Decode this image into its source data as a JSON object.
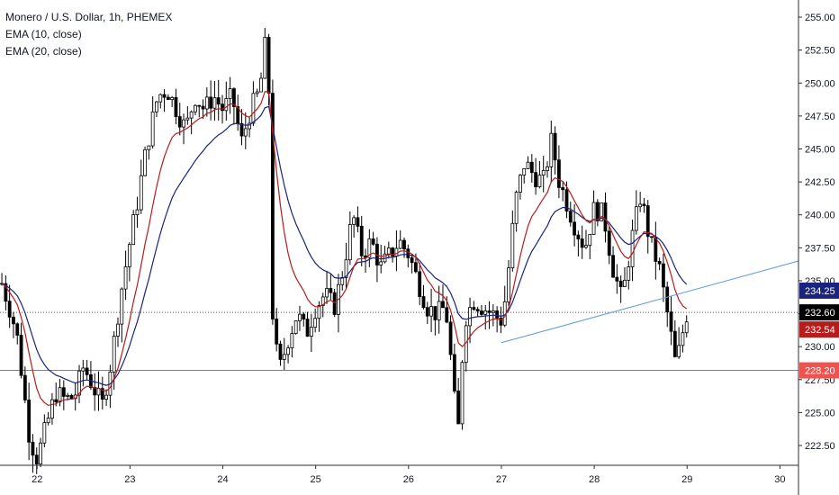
{
  "legend": {
    "title": "Monero / U.S. Dollar, 1h, PHEMEX",
    "ema10": "EMA (10, close)",
    "ema20": "EMA (20, close)"
  },
  "colors": {
    "up": "#ffffff",
    "down": "#000000",
    "wick": "#000000",
    "ema10": "#b71c1c",
    "ema20": "#1a237e",
    "trendline": "#5b9bd5",
    "support_line": "#ef5350",
    "grid": "#d9d9d9"
  },
  "chart_data": {
    "type": "candlestick",
    "symbol": "Monero / U.S. Dollar",
    "interval": "1h",
    "exchange": "PHEMEX",
    "x_ticks": [
      "22",
      "23",
      "24",
      "25",
      "26",
      "27",
      "28",
      "29",
      "30"
    ],
    "y_ticks": [
      "222.50",
      "225.00",
      "227.50",
      "230.00",
      "232.50",
      "235.00",
      "237.50",
      "240.00",
      "242.50",
      "245.00",
      "247.50",
      "250.00",
      "252.50",
      "255.00"
    ],
    "ylim": [
      221.0,
      256.3
    ],
    "xlim": [
      21.6,
      30.2
    ],
    "price_path": [
      [
        21.62,
        234.8
      ],
      [
        21.7,
        233.0
      ],
      [
        21.78,
        231.0
      ],
      [
        21.85,
        227.0
      ],
      [
        21.92,
        223.0
      ],
      [
        22.0,
        221.5
      ],
      [
        22.1,
        224.0
      ],
      [
        22.2,
        226.5
      ],
      [
        22.3,
        226.0
      ],
      [
        22.4,
        226.2
      ],
      [
        22.5,
        228.5
      ],
      [
        22.6,
        227.0
      ],
      [
        22.7,
        225.5
      ],
      [
        22.8,
        229.0
      ],
      [
        22.9,
        234.0
      ],
      [
        23.0,
        238.0
      ],
      [
        23.08,
        241.0
      ],
      [
        23.15,
        244.0
      ],
      [
        23.22,
        246.5
      ],
      [
        23.3,
        249.0
      ],
      [
        23.4,
        249.5
      ],
      [
        23.5,
        248.0
      ],
      [
        23.6,
        246.5
      ],
      [
        23.7,
        249.0
      ],
      [
        23.8,
        248.0
      ],
      [
        23.9,
        249.0
      ],
      [
        24.0,
        248.0
      ],
      [
        24.1,
        249.0
      ],
      [
        24.2,
        245.5
      ],
      [
        24.3,
        248.0
      ],
      [
        24.4,
        249.5
      ],
      [
        24.45,
        253.0
      ],
      [
        24.5,
        249.0
      ],
      [
        24.53,
        233.0
      ],
      [
        24.6,
        228.0
      ],
      [
        24.7,
        230.5
      ],
      [
        24.8,
        232.5
      ],
      [
        24.9,
        231.0
      ],
      [
        25.0,
        233.0
      ],
      [
        25.1,
        234.0
      ],
      [
        25.2,
        233.0
      ],
      [
        25.3,
        236.0
      ],
      [
        25.4,
        240.0
      ],
      [
        25.5,
        237.0
      ],
      [
        25.6,
        238.0
      ],
      [
        25.7,
        236.0
      ],
      [
        25.8,
        237.0
      ],
      [
        25.9,
        238.0
      ],
      [
        26.0,
        237.0
      ],
      [
        26.1,
        235.0
      ],
      [
        26.2,
        233.0
      ],
      [
        26.3,
        232.5
      ],
      [
        26.4,
        233.0
      ],
      [
        26.47,
        228.0
      ],
      [
        26.53,
        223.0
      ],
      [
        26.6,
        232.0
      ],
      [
        26.7,
        233.5
      ],
      [
        26.8,
        233.0
      ],
      [
        26.9,
        232.5
      ],
      [
        27.0,
        232.0
      ],
      [
        27.05,
        234.0
      ],
      [
        27.15,
        241.0
      ],
      [
        27.25,
        244.0
      ],
      [
        27.35,
        243.0
      ],
      [
        27.45,
        242.5
      ],
      [
        27.55,
        246.0
      ],
      [
        27.6,
        243.0
      ],
      [
        27.7,
        241.0
      ],
      [
        27.8,
        239.0
      ],
      [
        27.9,
        237.5
      ],
      [
        28.0,
        240.5
      ],
      [
        28.1,
        240.0
      ],
      [
        28.2,
        236.0
      ],
      [
        28.3,
        233.5
      ],
      [
        28.4,
        238.0
      ],
      [
        28.5,
        241.5
      ],
      [
        28.6,
        238.0
      ],
      [
        28.7,
        236.0
      ],
      [
        28.8,
        232.0
      ],
      [
        28.88,
        228.5
      ],
      [
        28.95,
        231.0
      ],
      [
        29.0,
        232.6
      ]
    ],
    "ema10_last": 232.54,
    "ema20_last": 234.25,
    "last_price": 232.6,
    "support_level": 228.2,
    "trendline": {
      "start": [
        27.0,
        230.3
      ],
      "end": [
        30.2,
        236.5
      ]
    },
    "price_labels": [
      "234.25",
      "232.60",
      "232.54",
      "228.20"
    ]
  }
}
